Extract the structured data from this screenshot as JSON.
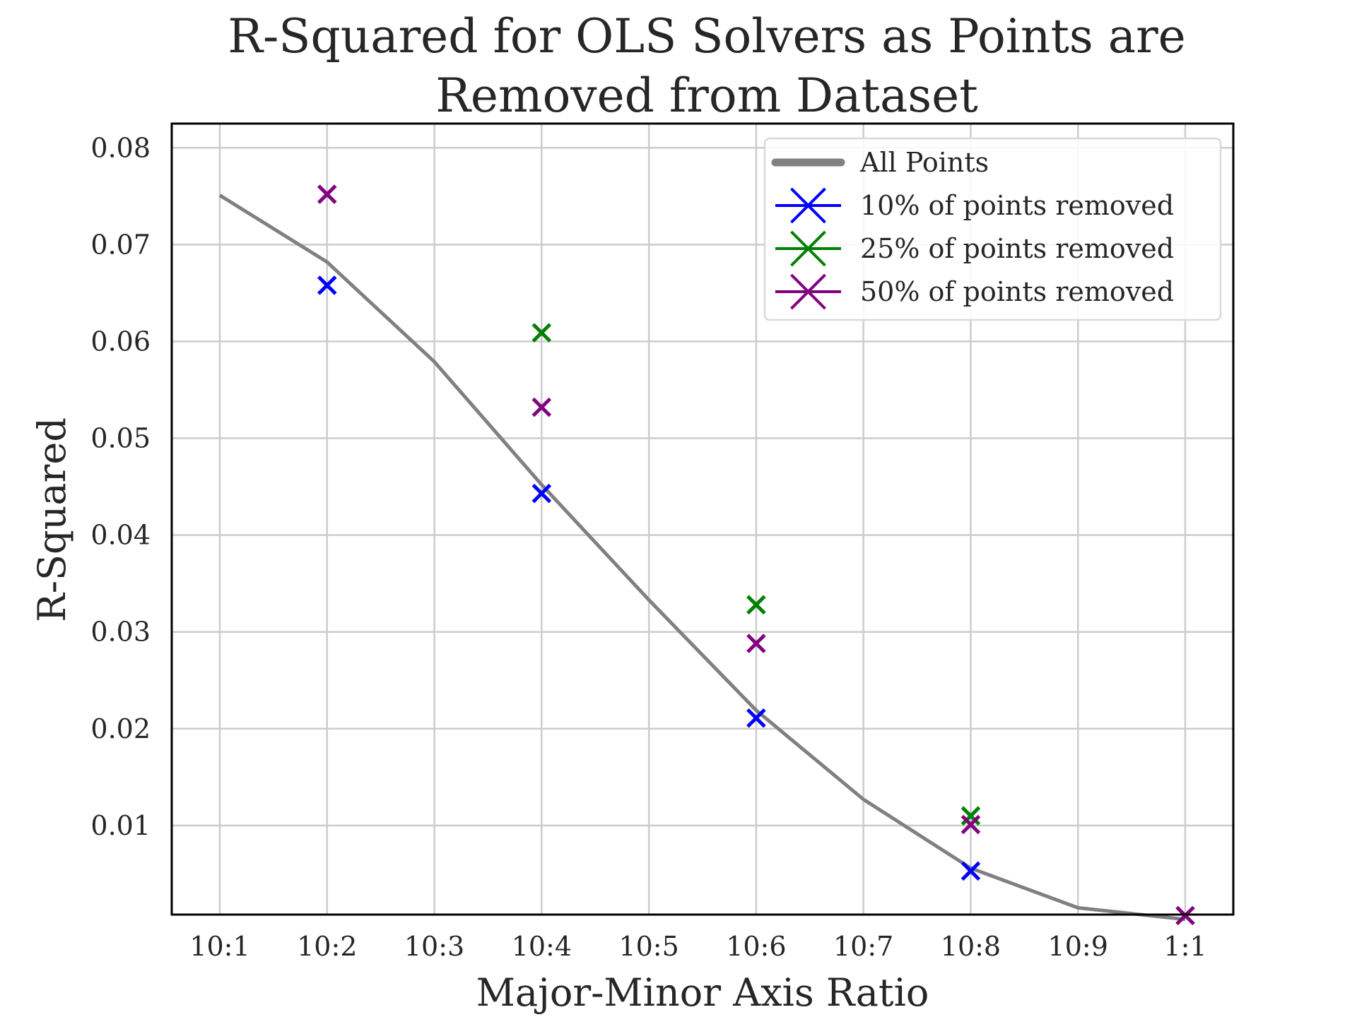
{
  "chart_data": {
    "type": "line",
    "title_lines": [
      "R-Squared for OLS Solvers as Points are",
      "Removed from Dataset"
    ],
    "xlabel": "Major-Minor Axis Ratio",
    "ylabel": "R-Squared",
    "categories": [
      "10:1",
      "10:2",
      "10:3",
      "10:4",
      "10:5",
      "10:6",
      "10:7",
      "10:8",
      "10:9",
      "1:1"
    ],
    "yticks": [
      "0.01",
      "0.02",
      "0.03",
      "0.04",
      "0.05",
      "0.06",
      "0.07",
      "0.08"
    ],
    "ylim": [
      0.0008,
      0.0825
    ],
    "grid": true,
    "legend_position": "top-right",
    "series": [
      {
        "name": "All Points",
        "kind": "line",
        "color": "#808080",
        "points": [
          [
            0,
            0.0751
          ],
          [
            1,
            0.0682
          ],
          [
            2,
            0.0579
          ],
          [
            3,
            0.0452
          ],
          [
            4,
            0.0333
          ],
          [
            5,
            0.0219
          ],
          [
            6,
            0.0127
          ],
          [
            7,
            0.0056
          ],
          [
            8,
            0.0015
          ],
          [
            9,
            0.0003
          ]
        ]
      },
      {
        "name": "10% of points removed",
        "kind": "marker",
        "color": "#0000ff",
        "points": [
          [
            1,
            0.0658
          ],
          [
            3,
            0.0443
          ],
          [
            5,
            0.0211
          ],
          [
            7,
            0.0053
          ]
        ]
      },
      {
        "name": "25% of points removed",
        "kind": "marker",
        "color": "#008000",
        "points": [
          [
            3,
            0.0609
          ],
          [
            5,
            0.0328
          ],
          [
            7,
            0.011
          ]
        ]
      },
      {
        "name": "50% of points removed",
        "kind": "marker",
        "color": "#800080",
        "points": [
          [
            1,
            0.0752
          ],
          [
            3,
            0.0532
          ],
          [
            5,
            0.0288
          ],
          [
            7,
            0.0101
          ],
          [
            9,
            0.0007
          ]
        ]
      }
    ]
  }
}
